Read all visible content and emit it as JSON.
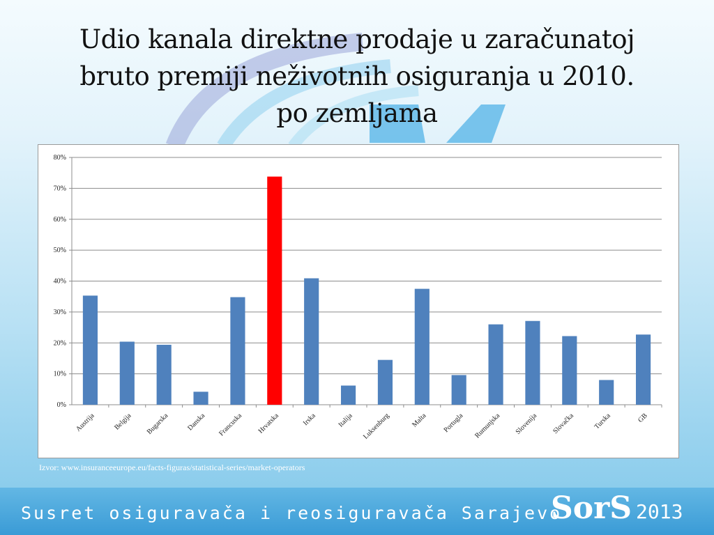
{
  "slide": {
    "title_lines": [
      "Udio kanala direktne prodaje u zaračunatoj",
      "bruto premiji neživotnih osiguranja u 2010.",
      "po zemljama"
    ],
    "source": "Izvor:  www.insuranceeurope.eu/facts-figuras/statistical-series/market-operators",
    "footer_text": "Susret osiguravača i reosiguravača Sarajevo",
    "footer_logo": "SorS",
    "footer_year": "2013"
  },
  "colors": {
    "bar": "#4f81bd",
    "highlight": "#ff0000",
    "grid": "#8c8c8c"
  },
  "chart_data": {
    "type": "bar",
    "title": "",
    "xlabel": "",
    "ylabel": "",
    "ylim": [
      0,
      80
    ],
    "yticks": [
      "0%",
      "10%",
      "20%",
      "30%",
      "40%",
      "50%",
      "60%",
      "70%",
      "80%"
    ],
    "grid": true,
    "highlight_category": "Hrvatska",
    "categories": [
      "Austrija",
      "Belgija",
      "Bugarska",
      "Danska",
      "Francuska",
      "Hrvatska",
      "Irska",
      "Italija",
      "Luksenburg",
      "Malta",
      "Portugla",
      "Rumunjska",
      "Slovenija",
      "Slovačka",
      "Turska",
      "GB"
    ],
    "values": [
      35.3,
      20.4,
      19.4,
      4.2,
      34.8,
      73.8,
      40.9,
      6.2,
      14.5,
      37.5,
      9.6,
      26.0,
      27.1,
      22.2,
      8.0,
      22.7
    ]
  }
}
